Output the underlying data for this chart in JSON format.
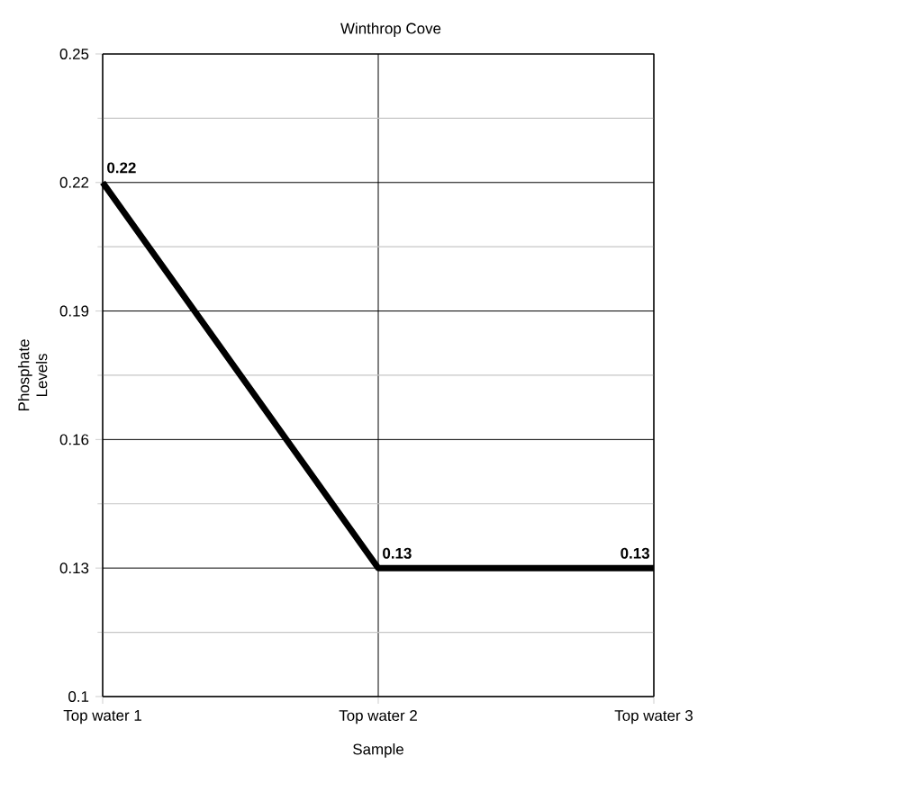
{
  "chart_data": {
    "type": "line",
    "title": "Winthrop Cove",
    "xlabel": "Sample",
    "ylabel": "Phosphate Levels",
    "categories": [
      "Top water 1",
      "Top water 2",
      "Top water 3"
    ],
    "series": [
      {
        "color": "#000000",
        "values": [
          0.22,
          0.13,
          0.13
        ]
      }
    ],
    "ylim": [
      0.1,
      0.25
    ],
    "yticks": [
      0.1,
      0.13,
      0.16,
      0.19,
      0.22,
      0.25
    ],
    "grid": true,
    "data_labels": true,
    "marker": "none",
    "line_style": "solid"
  }
}
